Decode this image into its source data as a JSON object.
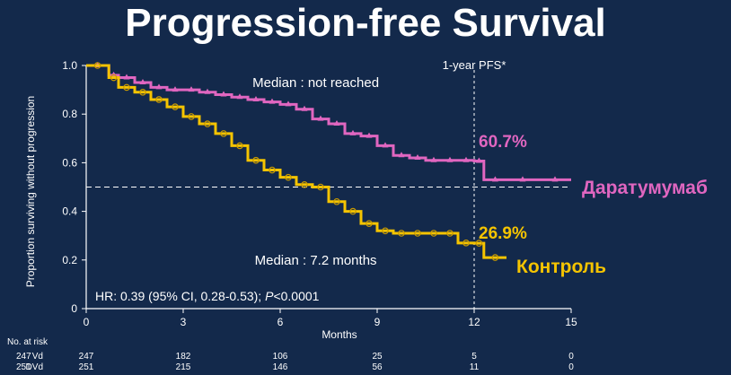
{
  "title": "Progression-free Survival",
  "chart_data": {
    "type": "line",
    "title": "Progression-free Survival",
    "xlabel": "Months",
    "ylabel": "Proportion surviving without progression",
    "xlim": [
      0,
      15
    ],
    "ylim": [
      0,
      1.0
    ],
    "xticks": [
      0,
      3,
      6,
      9,
      12,
      15
    ],
    "yticks": [
      0,
      0.2,
      0.4,
      0.6,
      0.8,
      1.0
    ],
    "ytick_labels": [
      "0",
      "0.2",
      "0.4",
      "0.6",
      "0.8",
      "1.0"
    ],
    "median_line": 0.5,
    "landmark_x": 12,
    "landmark_label": "1-year PFS*",
    "series": [
      {
        "name": "Даратумумаб",
        "color": "#e066c0",
        "landmark_value_label": "60.7%",
        "x": [
          0,
          0.7,
          1.0,
          1.5,
          2.0,
          2.5,
          3.0,
          3.5,
          4.0,
          4.5,
          5.0,
          5.5,
          6.0,
          6.5,
          7.0,
          7.5,
          8.0,
          8.5,
          9.0,
          9.5,
          10.0,
          10.5,
          11.0,
          11.5,
          12.0,
          12.3,
          13.0,
          14.0,
          15.0
        ],
        "y": [
          1.0,
          0.96,
          0.95,
          0.93,
          0.91,
          0.9,
          0.9,
          0.89,
          0.88,
          0.87,
          0.86,
          0.85,
          0.84,
          0.82,
          0.78,
          0.76,
          0.72,
          0.71,
          0.67,
          0.63,
          0.62,
          0.61,
          0.61,
          0.61,
          0.607,
          0.53,
          0.53,
          0.53,
          0.53
        ]
      },
      {
        "name": "Контроль",
        "color": "#f5c400",
        "landmark_value_label": "26.9%",
        "x": [
          0,
          0.7,
          1.0,
          1.5,
          2.0,
          2.5,
          3.0,
          3.5,
          4.0,
          4.5,
          5.0,
          5.5,
          6.0,
          6.5,
          7.0,
          7.5,
          8.0,
          8.5,
          9.0,
          9.5,
          10.0,
          10.5,
          11.0,
          11.5,
          12.0,
          12.3,
          13.0
        ],
        "y": [
          1.0,
          0.95,
          0.91,
          0.89,
          0.86,
          0.83,
          0.79,
          0.76,
          0.72,
          0.67,
          0.61,
          0.57,
          0.54,
          0.51,
          0.5,
          0.44,
          0.4,
          0.35,
          0.32,
          0.31,
          0.31,
          0.31,
          0.31,
          0.27,
          0.269,
          0.21,
          0.21
        ]
      }
    ],
    "annotations": [
      {
        "text": "Median : not reached",
        "x": 7.1,
        "y": 0.93
      },
      {
        "text": "Median : 7.2 months",
        "x": 7.1,
        "y": 0.2
      }
    ],
    "hr_text": "HR: 0.39 (95% CI, 0.28-0.53); ",
    "p_label": "P",
    "p_value": "<0.0001",
    "risk_table": {
      "title": "No. at risk",
      "rows": [
        {
          "label": "Vd",
          "values": [
            "247",
            "182",
            "106",
            "25",
            "5",
            "0"
          ]
        },
        {
          "label": "DVd",
          "values": [
            "251",
            "215",
            "146",
            "56",
            "11",
            "0"
          ]
        }
      ]
    },
    "grid": false,
    "legend": "inline-right"
  }
}
